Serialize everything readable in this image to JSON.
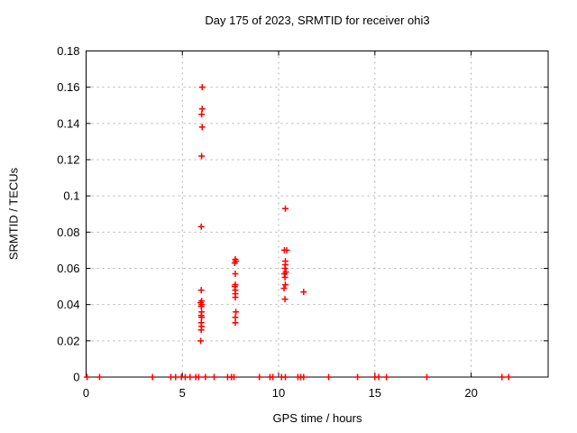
{
  "page": {
    "background": "#ffffff"
  },
  "chart_data": {
    "type": "scatter",
    "title": "Day 175 of 2023, SRMTID for receiver ohi3",
    "xlabel": "GPS time / hours",
    "ylabel": "SRMTID / TECUs",
    "xlim": [
      0,
      24
    ],
    "ylim": [
      0,
      0.18
    ],
    "xticks": [
      0,
      5,
      10,
      15,
      20
    ],
    "xtick_labels": [
      "0",
      "5",
      "10",
      "15",
      "20"
    ],
    "yticks": [
      0,
      0.02,
      0.04,
      0.06,
      0.08,
      0.1,
      0.12,
      0.14,
      0.16,
      0.18
    ],
    "ytick_labels": [
      "0",
      "0.02",
      "0.04",
      "0.06",
      "0.08",
      "0.1",
      "0.12",
      "0.14",
      "0.16",
      "0.18"
    ],
    "grid": true,
    "grid_color": "#b0b0b0",
    "axis_color": "#000000",
    "marker": "plus",
    "marker_color": "#ff0000",
    "legend": "none",
    "series": [
      {
        "name": "SRMTID",
        "points": [
          [
            0.05,
            0
          ],
          [
            0.7,
            0
          ],
          [
            3.45,
            0
          ],
          [
            4.4,
            0
          ],
          [
            4.65,
            0
          ],
          [
            4.95,
            0
          ],
          [
            5.15,
            0
          ],
          [
            5.4,
            0
          ],
          [
            5.7,
            0
          ],
          [
            5.85,
            0
          ],
          [
            6.2,
            0
          ],
          [
            6.65,
            0
          ],
          [
            7.35,
            0
          ],
          [
            7.55,
            0
          ],
          [
            7.68,
            0
          ],
          [
            9.0,
            0
          ],
          [
            9.55,
            0
          ],
          [
            9.7,
            0
          ],
          [
            10.15,
            0
          ],
          [
            10.35,
            0
          ],
          [
            11.0,
            0
          ],
          [
            11.15,
            0
          ],
          [
            11.3,
            0
          ],
          [
            12.6,
            0
          ],
          [
            14.1,
            0
          ],
          [
            15.0,
            0
          ],
          [
            15.2,
            0
          ],
          [
            15.6,
            0
          ],
          [
            17.7,
            0
          ],
          [
            21.6,
            0
          ],
          [
            21.95,
            0
          ],
          [
            5.95,
            0.02
          ],
          [
            5.95,
            0.041
          ],
          [
            5.98,
            0.026
          ],
          [
            5.98,
            0.03
          ],
          [
            5.98,
            0.034
          ],
          [
            5.98,
            0.039
          ],
          [
            5.98,
            0.048
          ],
          [
            5.98,
            0.083
          ],
          [
            6.0,
            0.028
          ],
          [
            6.0,
            0.033
          ],
          [
            6.0,
            0.036
          ],
          [
            6.0,
            0.04
          ],
          [
            6.0,
            0.042
          ],
          [
            6.0,
            0.122
          ],
          [
            6.0,
            0.145
          ],
          [
            6.03,
            0.138
          ],
          [
            6.03,
            0.148
          ],
          [
            6.03,
            0.16
          ],
          [
            7.72,
            0.05
          ],
          [
            7.72,
            0.063
          ],
          [
            7.75,
            0.03
          ],
          [
            7.75,
            0.033
          ],
          [
            7.75,
            0.044
          ],
          [
            7.75,
            0.046
          ],
          [
            7.75,
            0.048
          ],
          [
            7.75,
            0.051
          ],
          [
            7.75,
            0.057
          ],
          [
            7.75,
            0.065
          ],
          [
            7.78,
            0.036
          ],
          [
            7.78,
            0.064
          ],
          [
            10.28,
            0.049
          ],
          [
            10.3,
            0.057
          ],
          [
            10.3,
            0.07
          ],
          [
            10.33,
            0.043
          ],
          [
            10.33,
            0.055
          ],
          [
            10.33,
            0.06
          ],
          [
            10.35,
            0.051
          ],
          [
            10.35,
            0.062
          ],
          [
            10.35,
            0.064
          ],
          [
            10.35,
            0.093
          ],
          [
            10.38,
            0.058
          ],
          [
            10.42,
            0.07
          ],
          [
            11.3,
            0.047
          ]
        ]
      }
    ]
  }
}
